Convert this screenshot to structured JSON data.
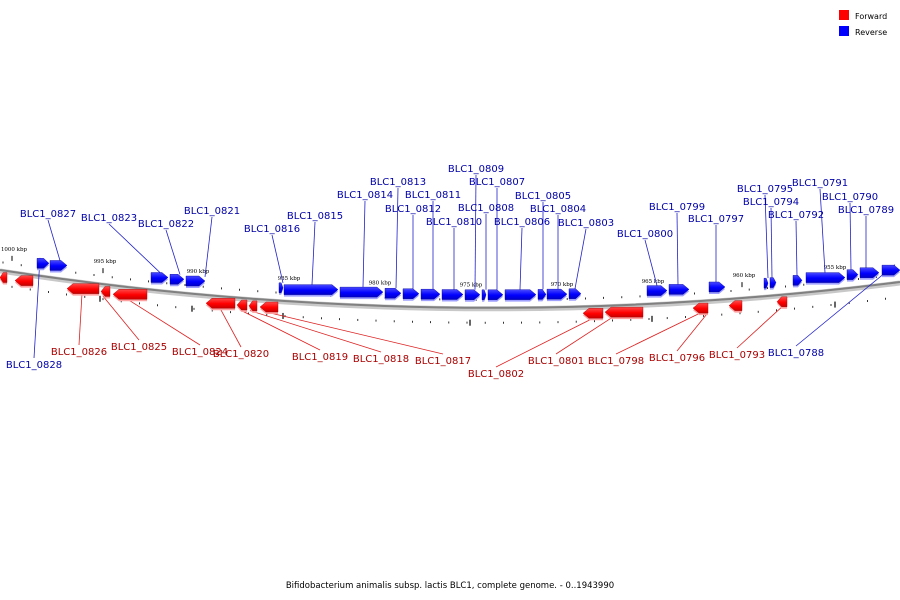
{
  "legend": {
    "forward": {
      "label": "Forward",
      "color": "#ff0000"
    },
    "reverse": {
      "label": "Reverse",
      "color": "#0000ff"
    }
  },
  "caption": "Bifidobacterium animalis subsp. lactis BLC1, complete genome. - 0..1943990",
  "scale": {
    "ticks": [
      {
        "label": "1000 kbp"
      },
      {
        "label": "995 kbp"
      },
      {
        "label": "990 kbp"
      },
      {
        "label": "985 kbp"
      },
      {
        "label": "980 kbp"
      },
      {
        "label": "975 kbp"
      },
      {
        "label": "970 kbp"
      },
      {
        "label": "965 kbp"
      },
      {
        "label": "960 kbp"
      },
      {
        "label": "955 kbp"
      }
    ]
  },
  "genes": {
    "reverse": [
      "BLC1_0827",
      "BLC1_0823",
      "BLC1_0822",
      "BLC1_0821",
      "BLC1_0816",
      "BLC1_0815",
      "BLC1_0814",
      "BLC1_0813",
      "BLC1_0812",
      "BLC1_0811",
      "BLC1_0810",
      "BLC1_0809",
      "BLC1_0808",
      "BLC1_0807",
      "BLC1_0806",
      "BLC1_0805",
      "BLC1_0804",
      "BLC1_0803",
      "BLC1_0800",
      "BLC1_0799",
      "BLC1_0797",
      "BLC1_0795",
      "BLC1_0794",
      "BLC1_0792",
      "BLC1_0791",
      "BLC1_0790",
      "BLC1_0789",
      "BLC1_0788",
      "BLC1_0828"
    ],
    "forward": [
      "BLC1_0826",
      "BLC1_0825",
      "BLC1_0824",
      "BLC1_0820",
      "BLC1_0819",
      "BLC1_0818",
      "BLC1_0817",
      "BLC1_0802",
      "BLC1_0801",
      "BLC1_0798",
      "BLC1_0796",
      "BLC1_0793"
    ]
  }
}
